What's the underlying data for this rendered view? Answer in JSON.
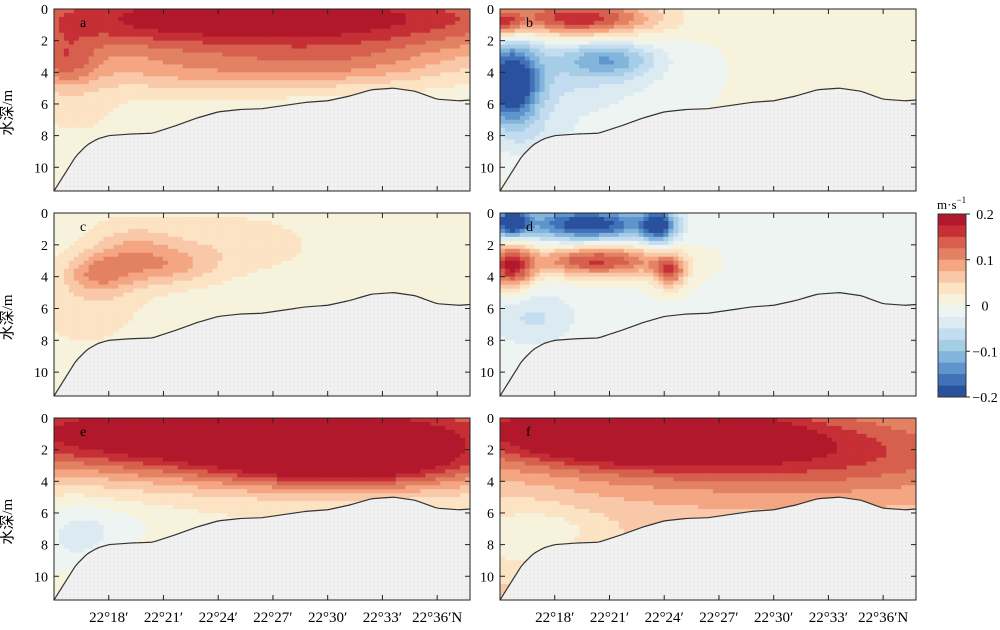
{
  "chart_data": {
    "type": "heatmap",
    "ylabel": "水深/m",
    "xlim": [
      22.25,
      22.63
    ],
    "ylim": [
      11.5,
      0
    ],
    "x_ticks": [
      22.3,
      22.35,
      22.4,
      22.45,
      22.5,
      22.55,
      22.6
    ],
    "x_tick_labels": [
      "22°18′",
      "22°21′",
      "22°24′",
      "22°27′",
      "22°30′",
      "22°33′",
      "22°36′N"
    ],
    "y_ticks": [
      0,
      2,
      4,
      6,
      8,
      10
    ],
    "y_tick_labels": [
      "0",
      "2",
      "4",
      "6",
      "8",
      "10"
    ],
    "colorbar": {
      "unit_label": "m·s",
      "unit_exponent": "−1",
      "range": [
        -0.2,
        0.2
      ],
      "ticks": [
        0.2,
        0.1,
        0,
        -0.1,
        -0.2
      ],
      "tick_labels": [
        "0.2",
        "0.1",
        "0",
        "−0.1",
        "−0.2"
      ],
      "colors": [
        "#b2182b",
        "#c62f35",
        "#d6604d",
        "#e38263",
        "#f4a582",
        "#f8c8a8",
        "#fbe3c3",
        "#f7f2dc",
        "#eef4f2",
        "#dcebf2",
        "#c3dcef",
        "#a6cde6",
        "#82b4dc",
        "#5e95cc",
        "#4172b7",
        "#2a519e"
      ]
    },
    "bathymetry": {
      "x": [
        22.25,
        22.26,
        22.27,
        22.28,
        22.29,
        22.3,
        22.32,
        22.34,
        22.36,
        22.38,
        22.4,
        22.42,
        22.44,
        22.46,
        22.48,
        22.5,
        22.52,
        22.54,
        22.56,
        22.58,
        22.6,
        22.62,
        22.63
      ],
      "depth": [
        11.5,
        10.4,
        9.3,
        8.6,
        8.2,
        8.0,
        7.9,
        7.85,
        7.4,
        6.9,
        6.5,
        6.35,
        6.3,
        6.1,
        5.9,
        5.8,
        5.5,
        5.1,
        5.0,
        5.2,
        5.7,
        5.8,
        5.75
      ]
    },
    "panels": [
      {
        "label": "a",
        "background": 0.01,
        "blobs": [
          {
            "x": 22.44,
            "y": 0.6,
            "rx": 0.3,
            "ry": 2.4,
            "v": 0.2
          },
          {
            "x": 22.26,
            "y": 3.4,
            "rx": 0.03,
            "ry": 1.6,
            "v": 0.08
          },
          {
            "x": 22.38,
            "y": 4.0,
            "rx": 0.12,
            "ry": 1.4,
            "v": 0.05
          },
          {
            "x": 22.52,
            "y": 3.6,
            "rx": 0.1,
            "ry": 1.4,
            "v": 0.05
          },
          {
            "x": 22.27,
            "y": 6.4,
            "rx": 0.05,
            "ry": 2.2,
            "v": 0.02
          }
        ]
      },
      {
        "label": "b",
        "background": 0.005,
        "blobs": [
          {
            "x": 22.26,
            "y": 4.8,
            "rx": 0.025,
            "ry": 2.6,
            "v": -0.2
          },
          {
            "x": 22.3,
            "y": 4.0,
            "rx": 0.1,
            "ry": 3.0,
            "v": -0.06
          },
          {
            "x": 22.35,
            "y": 3.2,
            "rx": 0.04,
            "ry": 1.1,
            "v": -0.09
          },
          {
            "x": 22.32,
            "y": 0.6,
            "rx": 0.07,
            "ry": 1.2,
            "v": 0.18
          },
          {
            "x": 22.25,
            "y": 0.9,
            "rx": 0.02,
            "ry": 1.0,
            "v": 0.13
          },
          {
            "x": 22.29,
            "y": 8.5,
            "rx": 0.04,
            "ry": 2.0,
            "v": -0.03
          }
        ]
      },
      {
        "label": "c",
        "background": 0.01,
        "blobs": [
          {
            "x": 22.32,
            "y": 2.6,
            "rx": 0.04,
            "ry": 1.9,
            "v": 0.06
          },
          {
            "x": 22.29,
            "y": 3.8,
            "rx": 0.03,
            "ry": 1.2,
            "v": 0.07
          },
          {
            "x": 22.36,
            "y": 3.3,
            "rx": 0.04,
            "ry": 1.2,
            "v": 0.05
          },
          {
            "x": 22.41,
            "y": 2.0,
            "rx": 0.08,
            "ry": 2.0,
            "v": 0.03
          },
          {
            "x": 22.28,
            "y": 6.0,
            "rx": 0.05,
            "ry": 2.4,
            "v": 0.03
          }
        ]
      },
      {
        "label": "d",
        "background": -0.004,
        "blobs": [
          {
            "x": 22.33,
            "y": 0.7,
            "rx": 0.06,
            "ry": 1.1,
            "v": -0.2
          },
          {
            "x": 22.26,
            "y": 0.6,
            "rx": 0.015,
            "ry": 0.9,
            "v": -0.2
          },
          {
            "x": 22.395,
            "y": 0.8,
            "rx": 0.015,
            "ry": 1.1,
            "v": -0.16
          },
          {
            "x": 22.34,
            "y": 3.0,
            "rx": 0.06,
            "ry": 1.0,
            "v": 0.16
          },
          {
            "x": 22.26,
            "y": 3.4,
            "rx": 0.02,
            "ry": 1.4,
            "v": 0.17
          },
          {
            "x": 22.405,
            "y": 3.7,
            "rx": 0.015,
            "ry": 1.0,
            "v": 0.13
          },
          {
            "x": 22.28,
            "y": 6.6,
            "rx": 0.04,
            "ry": 1.8,
            "v": -0.05
          }
        ]
      },
      {
        "label": "e",
        "background": 0.02,
        "blobs": [
          {
            "x": 22.42,
            "y": 1.0,
            "rx": 0.3,
            "ry": 2.6,
            "v": 0.22
          },
          {
            "x": 22.52,
            "y": 3.0,
            "rx": 0.12,
            "ry": 1.6,
            "v": 0.12
          },
          {
            "x": 22.27,
            "y": 7.6,
            "rx": 0.04,
            "ry": 2.4,
            "v": -0.05
          },
          {
            "x": 22.32,
            "y": 6.8,
            "rx": 0.05,
            "ry": 1.3,
            "v": -0.02
          }
        ]
      },
      {
        "label": "f",
        "background": 0.06,
        "blobs": [
          {
            "x": 22.36,
            "y": 0.8,
            "rx": 0.14,
            "ry": 2.0,
            "v": 0.2
          },
          {
            "x": 22.52,
            "y": 2.2,
            "rx": 0.2,
            "ry": 2.6,
            "v": 0.1
          },
          {
            "x": 22.27,
            "y": 7.6,
            "rx": 0.05,
            "ry": 2.4,
            "v": -0.05
          },
          {
            "x": 22.32,
            "y": 7.0,
            "rx": 0.05,
            "ry": 1.4,
            "v": -0.02
          }
        ]
      }
    ]
  }
}
